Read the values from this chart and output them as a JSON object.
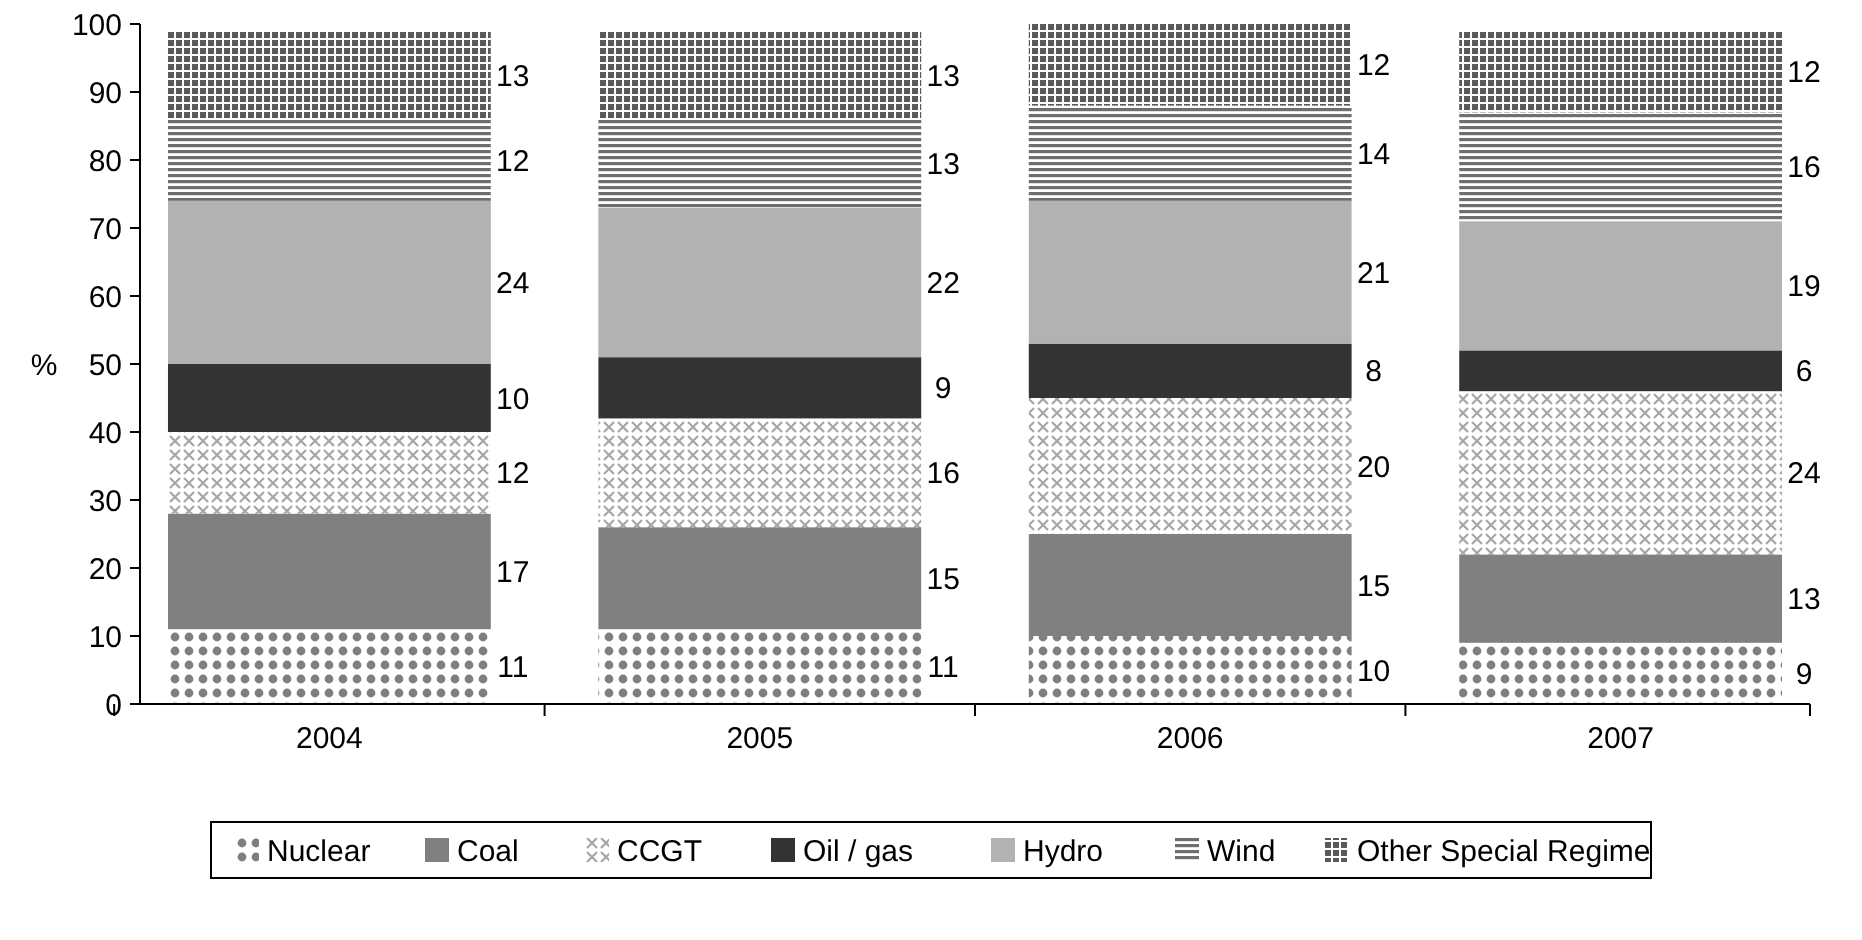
{
  "chart_data": {
    "type": "bar",
    "stacked": true,
    "ylabel": "%",
    "categories": [
      "2004",
      "2005",
      "2006",
      "2007"
    ],
    "series": [
      {
        "name": "Nuclear",
        "color": "#7f7f7f",
        "values": [
          11,
          11,
          10,
          9
        ]
      },
      {
        "name": "Coal",
        "color": "#808080",
        "values": [
          17,
          15,
          15,
          13
        ]
      },
      {
        "name": "CCGT",
        "color": "#a6a6a6",
        "values": [
          12,
          16,
          20,
          24
        ]
      },
      {
        "name": "Oil / gas",
        "color": "#333333",
        "values": [
          10,
          9,
          8,
          6
        ]
      },
      {
        "name": "Hydro",
        "color": "#b2b2b2",
        "values": [
          24,
          22,
          21,
          19
        ]
      },
      {
        "name": "Wind",
        "color": "#6e6e6e",
        "values": [
          12,
          13,
          14,
          16
        ]
      },
      {
        "name": "Other Special Regime",
        "color": "#5a5a5a",
        "values": [
          13,
          13,
          12,
          12
        ]
      }
    ],
    "ylim": [
      0,
      100
    ],
    "yticks": [
      0,
      10,
      20,
      30,
      40,
      50,
      60,
      70,
      80,
      90,
      100
    ],
    "grid": false,
    "legend": "bottom",
    "data_labels": true
  }
}
